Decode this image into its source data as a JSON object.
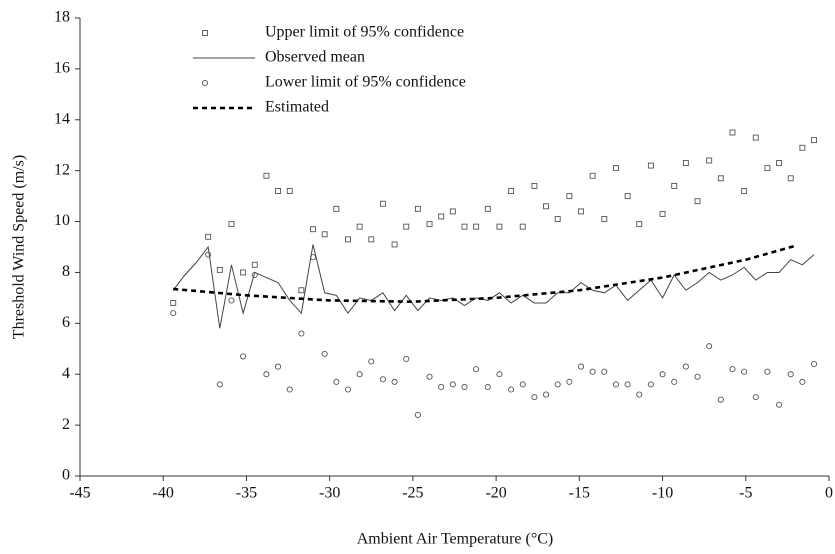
{
  "chart_data": {
    "type": "line",
    "x_label": "Ambient Air Temperature (°C)",
    "y_label": "Threshold Wind Speed (m/s)",
    "xlim": [
      -45,
      0
    ],
    "xticks": [
      -45,
      -40,
      -35,
      -30,
      -25,
      -20,
      -15,
      -10,
      -5,
      0
    ],
    "ylim": [
      0,
      18
    ],
    "yticks": [
      0,
      2,
      4,
      6,
      8,
      10,
      12,
      14,
      16,
      18
    ],
    "grid": false,
    "legend": "top-left",
    "x": [
      -39.4,
      -38.7,
      -38.0,
      -37.3,
      -36.6,
      -35.9,
      -35.2,
      -34.5,
      -33.8,
      -33.1,
      -32.4,
      -31.7,
      -31.0,
      -30.3,
      -29.6,
      -28.9,
      -28.2,
      -27.5,
      -26.8,
      -26.1,
      -25.4,
      -24.7,
      -24.0,
      -23.3,
      -22.6,
      -21.9,
      -21.2,
      -20.5,
      -19.8,
      -19.1,
      -18.4,
      -17.7,
      -17.0,
      -16.3,
      -15.6,
      -14.9,
      -14.2,
      -13.5,
      -12.8,
      -12.1,
      -11.4,
      -10.7,
      -10.0,
      -9.3,
      -8.6,
      -7.9,
      -7.2,
      -6.5,
      -5.8,
      -5.1,
      -4.4,
      -3.7,
      -3.0,
      -2.3,
      -1.6,
      -0.9
    ],
    "series": [
      {
        "name": "Upper limit of 95% confidence",
        "style": "square",
        "color": "#555555",
        "values": [
          6.8,
          null,
          null,
          9.4,
          8.1,
          9.9,
          8.0,
          8.3,
          11.8,
          11.2,
          11.2,
          7.3,
          9.7,
          9.5,
          10.5,
          9.3,
          9.8,
          9.3,
          10.7,
          9.1,
          9.8,
          10.5,
          9.9,
          10.2,
          10.4,
          9.8,
          9.8,
          10.5,
          9.8,
          11.2,
          9.8,
          11.4,
          10.6,
          10.1,
          11.0,
          10.4,
          11.8,
          10.1,
          12.1,
          11.0,
          9.9,
          12.2,
          10.3,
          11.4,
          12.3,
          10.8,
          12.4,
          11.7,
          13.5,
          11.2,
          13.3,
          12.1,
          12.3,
          11.7,
          12.9,
          13.2
        ]
      },
      {
        "name": "Observed mean",
        "style": "solid",
        "color": "#444444",
        "values": [
          7.3,
          7.9,
          8.4,
          9.0,
          5.8,
          8.3,
          6.4,
          8.0,
          7.8,
          7.6,
          6.9,
          6.4,
          9.1,
          7.2,
          7.1,
          6.4,
          7.0,
          6.9,
          7.2,
          6.5,
          7.1,
          6.5,
          7.0,
          6.9,
          7.0,
          6.7,
          7.0,
          6.9,
          7.2,
          6.8,
          7.1,
          6.8,
          6.8,
          7.2,
          7.2,
          7.6,
          7.3,
          7.2,
          7.5,
          6.9,
          7.3,
          7.7,
          7.0,
          7.9,
          7.3,
          7.6,
          8.0,
          7.7,
          7.9,
          8.2,
          7.7,
          8.0,
          8.0,
          8.5,
          8.3,
          8.7
        ]
      },
      {
        "name": "Lower limit of 95% confidence",
        "style": "circle",
        "color": "#555555",
        "values": [
          6.4,
          null,
          null,
          8.7,
          3.6,
          6.9,
          4.7,
          7.9,
          4.0,
          4.3,
          3.4,
          5.6,
          8.6,
          4.8,
          3.7,
          3.4,
          4.0,
          4.5,
          3.8,
          3.7,
          4.6,
          2.4,
          3.9,
          3.5,
          3.6,
          3.5,
          4.2,
          3.5,
          4.0,
          3.4,
          3.6,
          3.1,
          3.2,
          3.6,
          3.7,
          4.3,
          4.1,
          4.1,
          3.6,
          3.6,
          3.2,
          3.6,
          4.0,
          3.7,
          4.3,
          3.9,
          5.1,
          3.0,
          4.2,
          4.1,
          3.1,
          4.1,
          2.8,
          4.0,
          3.7,
          4.4
        ]
      },
      {
        "name": "Estimated",
        "style": "dashed",
        "color": "#000000",
        "x": [
          -39.4,
          -35,
          -30,
          -25,
          -20,
          -15,
          -10,
          -5,
          -2
        ],
        "values": [
          7.35,
          7.1,
          6.9,
          6.85,
          7.0,
          7.3,
          7.8,
          8.5,
          9.05
        ]
      }
    ]
  }
}
